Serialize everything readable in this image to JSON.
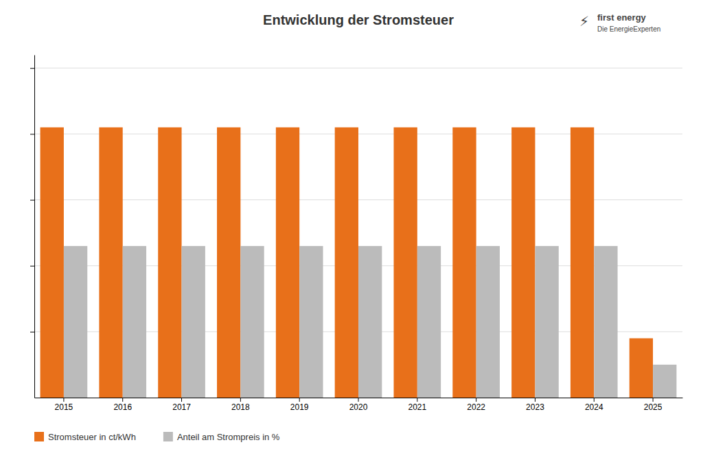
{
  "chart_data": {
    "type": "bar",
    "title": "Entwicklung der Stromsteuer",
    "categories": [
      "2015",
      "2016",
      "2017",
      "2018",
      "2019",
      "2020",
      "2021",
      "2022",
      "2023",
      "2024",
      "2025"
    ],
    "series": [
      {
        "name": "Stromsteuer in ct/kWh",
        "color": "#E8701A",
        "values": [
          20.5,
          20.5,
          20.5,
          20.5,
          20.5,
          20.5,
          20.5,
          20.5,
          20.5,
          20.5,
          4.5
        ]
      },
      {
        "name": "Anteil am Strompreis in %",
        "color": "#BBBBBB",
        "values": [
          11.5,
          11.5,
          11.5,
          11.5,
          11.5,
          11.5,
          11.5,
          11.5,
          11.5,
          11.5,
          2.5
        ]
      }
    ],
    "ylim": [
      0,
      26
    ],
    "yticks": [
      5,
      10,
      15,
      20,
      25
    ],
    "grid": true,
    "tick_labels": "x",
    "legend": "bottom",
    "annotations": [
      "⚡",
      "first energy",
      "Die EnergieExperten"
    ]
  }
}
